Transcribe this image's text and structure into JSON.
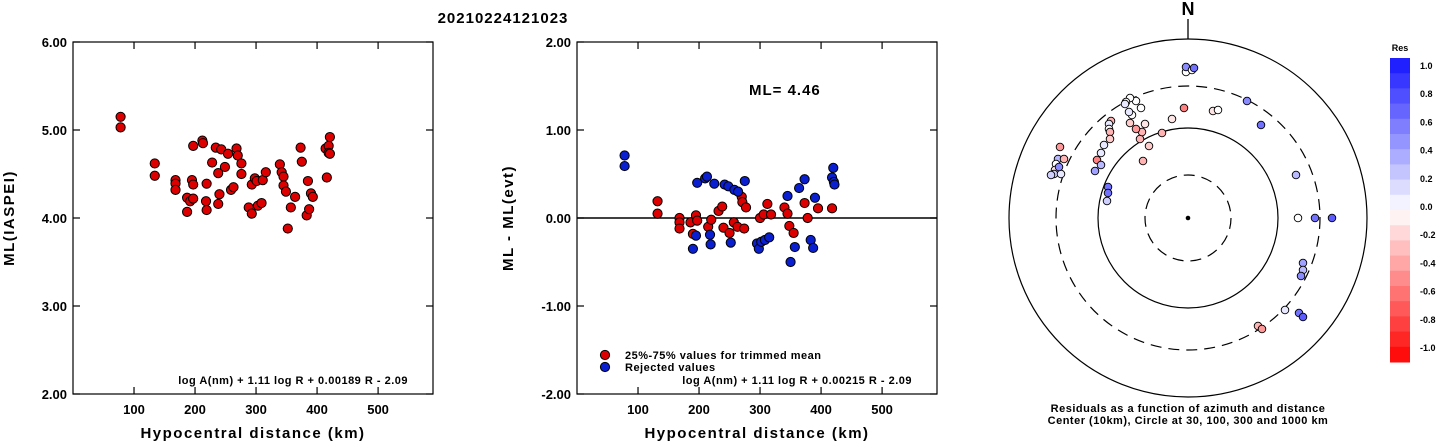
{
  "title": "20210224121023",
  "chart_data": [
    {
      "type": "scatter",
      "xlabel": "Hypocentral distance (km)",
      "ylabel": "ML(IASPEI)",
      "xlim": [
        0,
        590
      ],
      "ylim": [
        2.0,
        6.0
      ],
      "xticks": [
        100,
        200,
        300,
        400,
        500
      ],
      "yticks": [
        "2.00",
        "3.00",
        "4.00",
        "5.00",
        "6.00"
      ],
      "formula": "log A(nm) + 1.11 log R + 0.00189 R - 2.09",
      "series": [
        {
          "color": "#dd0000",
          "points": [
            [
              78,
              5.15
            ],
            [
              78,
              5.03
            ],
            [
              134,
              4.62
            ],
            [
              134,
              4.48
            ],
            [
              168,
              4.43
            ],
            [
              168,
              4.39
            ],
            [
              168,
              4.32
            ],
            [
              187,
              4.23
            ],
            [
              187,
              4.07
            ],
            [
              192,
              4.19
            ],
            [
              195,
              4.43
            ],
            [
              197,
              4.38
            ],
            [
              197,
              4.22
            ],
            [
              197,
              4.82
            ],
            [
              212,
              4.88
            ],
            [
              213,
              4.85
            ],
            [
              218,
              4.19
            ],
            [
              219,
              4.09
            ],
            [
              219,
              4.39
            ],
            [
              228,
              4.63
            ],
            [
              234,
              4.8
            ],
            [
              238,
              4.51
            ],
            [
              240,
              4.27
            ],
            [
              238,
              4.16
            ],
            [
              243,
              4.78
            ],
            [
              249,
              4.58
            ],
            [
              254,
              4.73
            ],
            [
              259,
              4.32
            ],
            [
              263,
              4.35
            ],
            [
              268,
              4.79
            ],
            [
              270,
              4.71
            ],
            [
              276,
              4.62
            ],
            [
              276,
              4.5
            ],
            [
              288,
              4.12
            ],
            [
              293,
              4.05
            ],
            [
              293,
              4.38
            ],
            [
              298,
              4.45
            ],
            [
              301,
              4.42
            ],
            [
              303,
              4.14
            ],
            [
              309,
              4.17
            ],
            [
              311,
              4.43
            ],
            [
              316,
              4.52
            ],
            [
              339,
              4.61
            ],
            [
              342,
              4.52
            ],
            [
              345,
              4.47
            ],
            [
              345,
              4.37
            ],
            [
              349,
              4.3
            ],
            [
              352,
              3.88
            ],
            [
              357,
              4.12
            ],
            [
              364,
              4.24
            ],
            [
              373,
              4.8
            ],
            [
              375,
              4.64
            ],
            [
              383,
              4.03
            ],
            [
              385,
              4.42
            ],
            [
              387,
              4.1
            ],
            [
              390,
              4.28
            ],
            [
              393,
              4.24
            ],
            [
              414,
              4.79
            ],
            [
              416,
              4.46
            ],
            [
              419,
              4.82
            ],
            [
              419,
              4.74
            ],
            [
              421,
              4.92
            ],
            [
              421,
              4.73
            ]
          ]
        }
      ]
    },
    {
      "type": "scatter",
      "xlabel": "Hypocentral distance (km)",
      "ylabel": "ML - ML(evt)",
      "xlim": [
        0,
        590
      ],
      "ylim": [
        -2.0,
        2.0
      ],
      "xticks": [
        100,
        200,
        300,
        400,
        500
      ],
      "yticks": [
        "-2.00",
        "-1.00",
        "0.00",
        "1.00",
        "2.00"
      ],
      "annotation": "ML= 4.46",
      "formula": "log A(nm) + 1.11 log R + 0.00215 R - 2.09",
      "legend": [
        "25%-75% values for trimmed mean",
        "Rejected values"
      ],
      "series": [
        {
          "name": "25%-75% values for trimmed mean",
          "color": "#dd0000",
          "points": [
            [
              132,
              0.19
            ],
            [
              132,
              0.05
            ],
            [
              168,
              0.0
            ],
            [
              168,
              -0.05
            ],
            [
              168,
              -0.12
            ],
            [
              186,
              -0.05
            ],
            [
              190,
              -0.18
            ],
            [
              195,
              0.03
            ],
            [
              197,
              -0.03
            ],
            [
              215,
              -0.1
            ],
            [
              220,
              -0.02
            ],
            [
              232,
              0.08
            ],
            [
              238,
              0.13
            ],
            [
              240,
              -0.11
            ],
            [
              250,
              -0.17
            ],
            [
              257,
              -0.05
            ],
            [
              263,
              -0.1
            ],
            [
              270,
              0.24
            ],
            [
              271,
              0.18
            ],
            [
              274,
              -0.12
            ],
            [
              277,
              0.12
            ],
            [
              300,
              0.0
            ],
            [
              306,
              0.04
            ],
            [
              312,
              0.16
            ],
            [
              318,
              0.04
            ],
            [
              340,
              0.12
            ],
            [
              345,
              0.05
            ],
            [
              348,
              -0.09
            ],
            [
              355,
              -0.17
            ],
            [
              373,
              0.17
            ],
            [
              378,
              0.0
            ],
            [
              395,
              0.11
            ],
            [
              418,
              0.11
            ]
          ]
        },
        {
          "name": "Rejected values",
          "color": "#0a1fd0",
          "points": [
            [
              78,
              0.71
            ],
            [
              78,
              0.59
            ],
            [
              190,
              -0.35
            ],
            [
              195,
              -0.2
            ],
            [
              197,
              0.4
            ],
            [
              210,
              0.45
            ],
            [
              213,
              0.47
            ],
            [
              218,
              -0.19
            ],
            [
              219,
              -0.3
            ],
            [
              225,
              0.39
            ],
            [
              242,
              0.38
            ],
            [
              248,
              0.36
            ],
            [
              252,
              -0.28
            ],
            [
              258,
              0.32
            ],
            [
              264,
              0.3
            ],
            [
              275,
              0.42
            ],
            [
              295,
              -0.29
            ],
            [
              298,
              -0.35
            ],
            [
              302,
              -0.27
            ],
            [
              308,
              -0.25
            ],
            [
              315,
              -0.22
            ],
            [
              345,
              0.25
            ],
            [
              350,
              -0.5
            ],
            [
              357,
              -0.33
            ],
            [
              364,
              0.34
            ],
            [
              373,
              0.44
            ],
            [
              383,
              -0.25
            ],
            [
              387,
              -0.34
            ],
            [
              390,
              0.23
            ],
            [
              418,
              0.46
            ],
            [
              420,
              0.57
            ],
            [
              421,
              0.41
            ],
            [
              422,
              0.38
            ]
          ]
        }
      ]
    },
    {
      "type": "polar",
      "north_label": "N",
      "caption": [
        "Residuals as a function of azimuth and distance",
        "Center (10km), Circle at 30, 100, 300 and 1000 km"
      ],
      "colorbar_title": "Res",
      "colorbar_ticks": [
        "1.0",
        "0.8",
        "0.6",
        "0.4",
        "0.2",
        "0.0",
        "-0.2",
        "-0.4",
        "-0.6",
        "-0.8",
        "-1.0"
      ],
      "colorbar_range": [
        -1.0,
        1.0
      ],
      "points": [
        [
          -45,
          -57,
          -0.3
        ],
        [
          -39,
          -72,
          -0.2
        ],
        [
          -48,
          -79,
          -0.3
        ],
        [
          -46,
          -86,
          -0.3
        ],
        [
          -52,
          -89,
          -0.4
        ],
        [
          -43,
          -94,
          -0.1
        ],
        [
          -58,
          -95,
          -0.2
        ],
        [
          -56,
          -103,
          0.0
        ],
        [
          -59,
          -106,
          0.1
        ],
        [
          -47,
          -110,
          0.0
        ],
        [
          -52,
          -117,
          0.0
        ],
        [
          -26,
          -85,
          -0.3
        ],
        [
          -16,
          -99,
          -0.1
        ],
        [
          -4,
          -110,
          -0.5
        ],
        [
          -58,
          -120,
          0.0
        ],
        [
          -62,
          -116,
          0.0
        ],
        [
          -63,
          -114,
          0.1
        ],
        [
          -77,
          -97,
          -0.3
        ],
        [
          -79,
          -94,
          0.1
        ],
        [
          -79,
          -89,
          0.0
        ],
        [
          -78,
          -86,
          -0.3
        ],
        [
          -78,
          -79,
          -0.2
        ],
        [
          -84,
          -73,
          0.1
        ],
        [
          -87,
          -65,
          0.1
        ],
        [
          -91,
          -58,
          -0.5
        ],
        [
          -87,
          -53,
          0.3
        ],
        [
          -93,
          -47,
          0.4
        ],
        [
          -80,
          -31,
          0.6
        ],
        [
          -81,
          -17,
          0.2
        ],
        [
          -128,
          -71,
          -0.4
        ],
        [
          -130,
          -59,
          0.3
        ],
        [
          -132,
          -54,
          0.0
        ],
        [
          -133,
          -48,
          -0.1
        ],
        [
          -134,
          -44,
          0.2
        ],
        [
          -137,
          -43,
          0.2
        ],
        [
          -127,
          -44,
          0.1
        ],
        [
          -124,
          -59,
          -0.3
        ],
        [
          -129,
          -51,
          0.5
        ],
        [
          -80,
          -25,
          0.6
        ],
        [
          -2,
          -146,
          0.0
        ],
        [
          -2,
          -151,
          0.5
        ],
        [
          4,
          -148,
          0.0
        ],
        [
          6,
          -150,
          0.6
        ],
        [
          25,
          -107,
          -0.1
        ],
        [
          30,
          -108,
          0.0
        ],
        [
          59,
          -117,
          0.5
        ],
        [
          73,
          -93,
          0.6
        ],
        [
          108,
          -43,
          0.3
        ],
        [
          110,
          0,
          0.0
        ],
        [
          127,
          0,
          0.6
        ],
        [
          144,
          0,
          0.7
        ],
        [
          115,
          45,
          0.4
        ],
        [
          115,
          52,
          0.3
        ],
        [
          113,
          58,
          0.5
        ],
        [
          97,
          92,
          0.1
        ],
        [
          111,
          95,
          0.6
        ],
        [
          115,
          99,
          0.7
        ],
        [
          70,
          108,
          -0.3
        ],
        [
          74,
          111,
          -0.4
        ]
      ]
    }
  ]
}
